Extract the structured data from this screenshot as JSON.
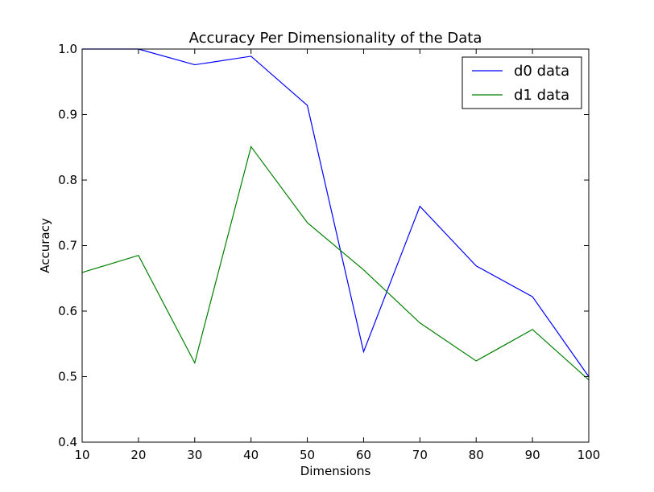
{
  "chart_data": {
    "type": "line",
    "title": "Accuracy Per Dimensionality of the Data",
    "xlabel": "Dimensions",
    "ylabel": "Accuracy",
    "xlim": [
      10,
      100
    ],
    "ylim": [
      0.4,
      1.0
    ],
    "xticks": [
      10,
      20,
      30,
      40,
      50,
      60,
      70,
      80,
      90,
      100
    ],
    "yticks": [
      0.4,
      0.5,
      0.6,
      0.7,
      0.8,
      0.9,
      1.0
    ],
    "ytick_labels": [
      "0.4",
      "0.5",
      "0.6",
      "0.7",
      "0.8",
      "0.9",
      "1.0"
    ],
    "grid": false,
    "legend_position": "top-right",
    "x": [
      10,
      20,
      30,
      40,
      50,
      60,
      70,
      80,
      90,
      100
    ],
    "series": [
      {
        "name": "d0 data",
        "color": "#0000ff",
        "values": [
          1.0,
          1.0,
          0.976,
          0.989,
          0.914,
          0.538,
          0.76,
          0.669,
          0.622,
          0.5
        ]
      },
      {
        "name": "d1 data",
        "color": "#008000",
        "values": [
          0.659,
          0.685,
          0.521,
          0.851,
          0.735,
          0.663,
          0.582,
          0.524,
          0.572,
          0.495
        ]
      }
    ]
  }
}
